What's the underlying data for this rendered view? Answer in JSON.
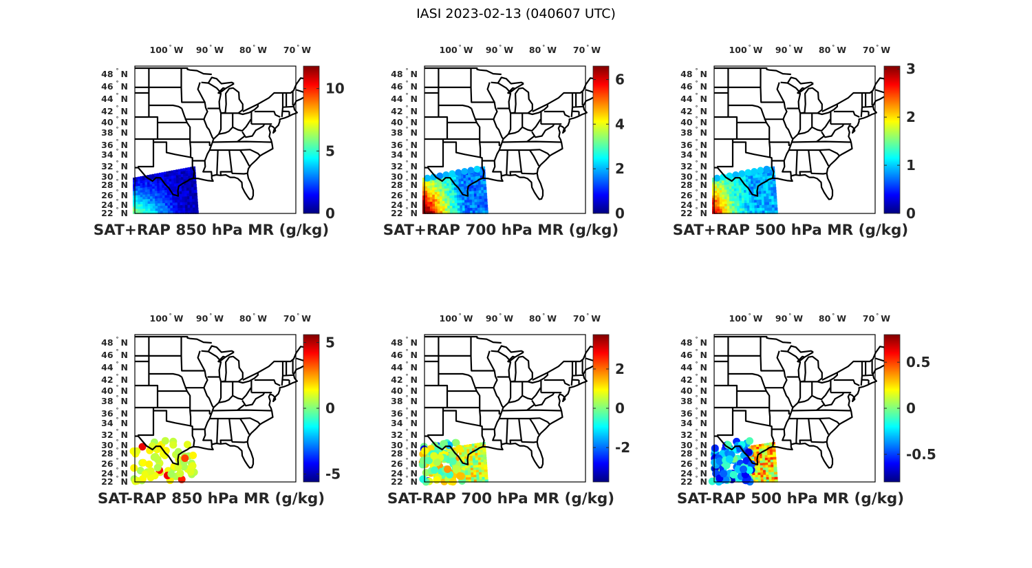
{
  "figure": {
    "title": "IASI 2023-02-13 (040607 UTC)",
    "colormap": "jet",
    "lon_ticks": [
      {
        "value": "100",
        "hemi": "W"
      },
      {
        "value": "90",
        "hemi": "W"
      },
      {
        "value": "80",
        "hemi": "W"
      },
      {
        "value": "70",
        "hemi": "W"
      }
    ],
    "lat_ticks": [
      {
        "value": "48",
        "hemi": "N"
      },
      {
        "value": "46",
        "hemi": "N"
      },
      {
        "value": "44",
        "hemi": "N"
      },
      {
        "value": "42",
        "hemi": "N"
      },
      {
        "value": "40",
        "hemi": "N"
      },
      {
        "value": "38",
        "hemi": "N"
      },
      {
        "value": "36",
        "hemi": "N"
      },
      {
        "value": "34",
        "hemi": "N"
      },
      {
        "value": "32",
        "hemi": "N"
      },
      {
        "value": "30",
        "hemi": "N"
      },
      {
        "value": "28",
        "hemi": "N"
      },
      {
        "value": "26",
        "hemi": "N"
      },
      {
        "value": "24",
        "hemi": "N"
      },
      {
        "value": "22",
        "hemi": "N"
      }
    ],
    "degree_symbol": "°"
  },
  "panels": [
    {
      "title": "SAT+RAP 850 hPa MR (g/kg)",
      "clim": [
        0,
        11.8
      ],
      "cb_ticks": [
        "0",
        "5",
        "10"
      ],
      "cb_tick_values": [
        0,
        5,
        10
      ],
      "kind": "analysis",
      "level_hpa": 850
    },
    {
      "title": "SAT+RAP 700 hPa MR (g/kg)",
      "clim": [
        0,
        6.6
      ],
      "cb_ticks": [
        "0",
        "2",
        "4",
        "6"
      ],
      "cb_tick_values": [
        0,
        2,
        4,
        6
      ],
      "kind": "analysis",
      "level_hpa": 700
    },
    {
      "title": "SAT+RAP 500 hPa MR (g/kg)",
      "clim": [
        0,
        3.06
      ],
      "cb_ticks": [
        "0",
        "1",
        "2",
        "3"
      ],
      "cb_tick_values": [
        0,
        1,
        2,
        3
      ],
      "kind": "analysis",
      "level_hpa": 500
    },
    {
      "title": "SAT-RAP 850 hPa MR (g/kg)",
      "clim": [
        -5.6,
        5.6
      ],
      "cb_ticks": [
        "-5",
        "0",
        "5"
      ],
      "cb_tick_values": [
        -5,
        0,
        5
      ],
      "kind": "difference",
      "level_hpa": 850
    },
    {
      "title": "SAT-RAP 700 hPa MR (g/kg)",
      "clim": [
        -3.75,
        3.75
      ],
      "cb_ticks": [
        "-2",
        "0",
        "2"
      ],
      "cb_tick_values": [
        -2,
        0,
        2
      ],
      "kind": "difference",
      "level_hpa": 700
    },
    {
      "title": "SAT-RAP 500 hPa MR (g/kg)",
      "clim": [
        -0.8,
        0.8
      ],
      "cb_ticks": [
        "-0.5",
        "0",
        "0.5"
      ],
      "cb_tick_values": [
        -0.5,
        0,
        0.5
      ],
      "kind": "difference",
      "level_hpa": 500
    }
  ]
}
